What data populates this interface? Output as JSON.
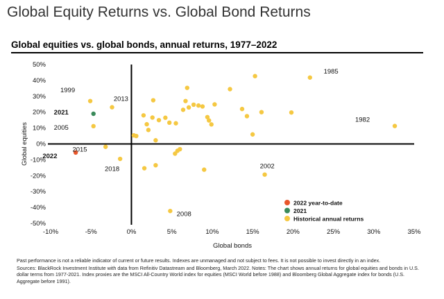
{
  "page_title": "Global Equity Returns vs. Global Bond Returns",
  "chart_data": {
    "type": "scatter",
    "title": "Global equities vs. global bonds, annual returns, 1977–2022",
    "xlabel": "Global bonds",
    "ylabel": "Global equities",
    "xlim": [
      -10,
      35
    ],
    "ylim": [
      -50,
      50
    ],
    "x_ticks": [
      -10,
      -5,
      0,
      5,
      10,
      15,
      20,
      25,
      30,
      35
    ],
    "y_ticks": [
      -50,
      -40,
      -30,
      -20,
      -10,
      0,
      10,
      20,
      30,
      40,
      50
    ],
    "x_tick_labels": [
      "-10%",
      "-5%",
      "0%",
      "5%",
      "10%",
      "15%",
      "20%",
      "25%",
      "30%",
      "35%"
    ],
    "y_tick_labels": [
      "-50%",
      "-40%",
      "-30%",
      "-20%",
      "-10%",
      "0%",
      "10%",
      "20%",
      "30%",
      "40%",
      "50%"
    ],
    "grid": false,
    "legend_position": "bottom-right",
    "series": [
      {
        "name": "2022 year-to-date",
        "color": "#e8562b",
        "points": [
          {
            "x": -6.9,
            "y": -5.4
          }
        ]
      },
      {
        "name": "2021",
        "color": "#3a8a5a",
        "points": [
          {
            "x": -4.7,
            "y": 19.0
          }
        ]
      },
      {
        "name": "Historical annual returns",
        "color": "#f5c842",
        "points": [
          {
            "x": 22.1,
            "y": 41.8
          },
          {
            "x": 15.3,
            "y": 42.7
          },
          {
            "x": 32.6,
            "y": 11.3
          },
          {
            "x": -5.1,
            "y": 27.0
          },
          {
            "x": -2.4,
            "y": 23.1
          },
          {
            "x": -4.7,
            "y": 11.2
          },
          {
            "x": -3.2,
            "y": -1.8
          },
          {
            "x": -1.4,
            "y": -9.4
          },
          {
            "x": 16.5,
            "y": -19.3
          },
          {
            "x": 4.8,
            "y": -42.2
          },
          {
            "x": 2.7,
            "y": 27.5
          },
          {
            "x": 6.9,
            "y": 35.3
          },
          {
            "x": 12.2,
            "y": 34.5
          },
          {
            "x": 6.7,
            "y": 27.0
          },
          {
            "x": 10.3,
            "y": 24.9
          },
          {
            "x": 7.7,
            "y": 24.7
          },
          {
            "x": 8.3,
            "y": 24.2
          },
          {
            "x": 8.8,
            "y": 23.6
          },
          {
            "x": 7.1,
            "y": 23.0
          },
          {
            "x": 13.7,
            "y": 22.0
          },
          {
            "x": 16.1,
            "y": 20.0
          },
          {
            "x": 19.8,
            "y": 19.8
          },
          {
            "x": 6.4,
            "y": 21.5
          },
          {
            "x": 1.5,
            "y": 18.0
          },
          {
            "x": 2.6,
            "y": 16.6
          },
          {
            "x": 4.2,
            "y": 16.5
          },
          {
            "x": 9.4,
            "y": 16.9
          },
          {
            "x": 14.3,
            "y": 17.5
          },
          {
            "x": 3.4,
            "y": 15.0
          },
          {
            "x": 4.7,
            "y": 13.4
          },
          {
            "x": 5.5,
            "y": 13.0
          },
          {
            "x": 9.6,
            "y": 14.8
          },
          {
            "x": 9.9,
            "y": 12.3
          },
          {
            "x": 1.9,
            "y": 12.4
          },
          {
            "x": 2.1,
            "y": 8.8
          },
          {
            "x": 15.0,
            "y": 6.0
          },
          {
            "x": 0.3,
            "y": 5.4
          },
          {
            "x": 0.6,
            "y": 5.0
          },
          {
            "x": 3.0,
            "y": 2.3
          },
          {
            "x": 6.0,
            "y": -3.3
          },
          {
            "x": 5.7,
            "y": -4.3
          },
          {
            "x": 5.4,
            "y": -6.1
          },
          {
            "x": 3.0,
            "y": -13.4
          },
          {
            "x": 1.6,
            "y": -15.3
          },
          {
            "x": 9.0,
            "y": -16.2
          }
        ]
      }
    ],
    "annotations": [
      {
        "text": "1985",
        "x": 23.8,
        "y": 44.3,
        "bold": false
      },
      {
        "text": "1999",
        "x": -8.8,
        "y": 32.6,
        "bold": false
      },
      {
        "text": "2013",
        "x": -2.2,
        "y": 27.0,
        "bold": false
      },
      {
        "text": "2021",
        "x": -9.6,
        "y": 18.6,
        "bold": true
      },
      {
        "text": "2005",
        "x": -9.6,
        "y": 8.9,
        "bold": false
      },
      {
        "text": "1982",
        "x": 27.7,
        "y": 14.0,
        "bold": false
      },
      {
        "text": "2015",
        "x": -7.3,
        "y": -4.8,
        "bold": false
      },
      {
        "text": "2022",
        "x": -11.0,
        "y": -9.0,
        "bold": true
      },
      {
        "text": "2018",
        "x": -3.3,
        "y": -17.0,
        "bold": false
      },
      {
        "text": "2002",
        "x": 15.9,
        "y": -15.3,
        "bold": false
      },
      {
        "text": "2008",
        "x": 5.6,
        "y": -45.5,
        "bold": false
      }
    ]
  },
  "footnote": "Past performance is not a reliable indicator of current or future results. Indexes are unmanaged and not subject to fees. It is not possible to invest directly in an index.",
  "sources": "Sources: BlackRock Investment Institute with data from Refinitiv Datastream and Bloomberg, March 2022. Notes: The chart shows annual returns for global equities and bonds in U.S. dollar terms from 1977-2021. Index proxies are the MSCI All-Country World index for equities (MSCI World before 1988) and Bloomberg Global Aggregate index for bonds (U.S. Aggregate before 1991)."
}
